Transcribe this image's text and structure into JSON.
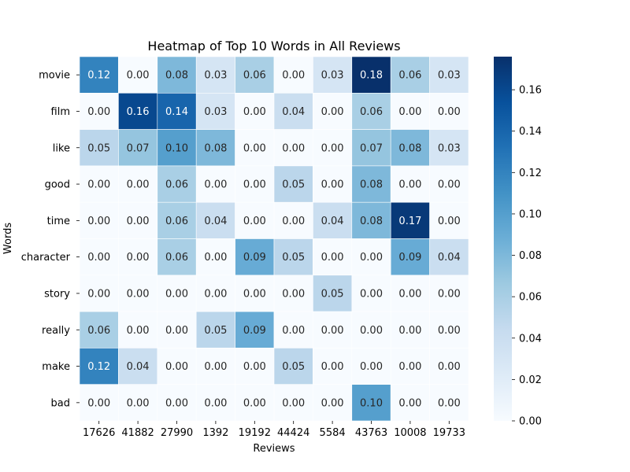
{
  "chart_data": {
    "type": "heatmap",
    "title": "Heatmap of Top 10 Words in All Reviews",
    "xlabel": "Reviews",
    "ylabel": "Words",
    "x": [
      "17626",
      "41882",
      "27990",
      "1392",
      "19192",
      "44424",
      "5584",
      "43763",
      "10008",
      "19733"
    ],
    "y": [
      "movie",
      "film",
      "like",
      "good",
      "time",
      "character",
      "story",
      "really",
      "make",
      "bad"
    ],
    "values": [
      [
        0.12,
        0.0,
        0.08,
        0.03,
        0.06,
        0.0,
        0.03,
        0.18,
        0.06,
        0.03
      ],
      [
        0.0,
        0.16,
        0.14,
        0.03,
        0.0,
        0.04,
        0.0,
        0.06,
        0.0,
        0.0
      ],
      [
        0.05,
        0.07,
        0.1,
        0.08,
        0.0,
        0.0,
        0.0,
        0.07,
        0.08,
        0.03
      ],
      [
        0.0,
        0.0,
        0.06,
        0.0,
        0.0,
        0.05,
        0.0,
        0.08,
        0.0,
        0.0
      ],
      [
        0.0,
        0.0,
        0.06,
        0.04,
        0.0,
        0.0,
        0.04,
        0.08,
        0.17,
        0.0
      ],
      [
        0.0,
        0.0,
        0.06,
        0.0,
        0.09,
        0.05,
        0.0,
        0.0,
        0.09,
        0.04
      ],
      [
        0.0,
        0.0,
        0.0,
        0.0,
        0.0,
        0.0,
        0.05,
        0.0,
        0.0,
        0.0
      ],
      [
        0.06,
        0.0,
        0.0,
        0.05,
        0.09,
        0.0,
        0.0,
        0.0,
        0.0,
        0.0
      ],
      [
        0.12,
        0.04,
        0.0,
        0.0,
        0.0,
        0.05,
        0.0,
        0.0,
        0.0,
        0.0
      ],
      [
        0.0,
        0.0,
        0.0,
        0.0,
        0.0,
        0.0,
        0.0,
        0.1,
        0.0,
        0.0
      ]
    ],
    "value_format": "0.00",
    "colormap": "Blues",
    "colormap_stops": [
      "#f7fbff",
      "#deebf7",
      "#c6dbef",
      "#9ecae1",
      "#6baed6",
      "#4292c6",
      "#2171b5",
      "#08519c",
      "#08306b"
    ],
    "colorbar": {
      "range": [
        0,
        0.176
      ],
      "ticks": [
        0.0,
        0.02,
        0.04,
        0.06,
        0.08,
        0.1,
        0.12,
        0.14,
        0.16
      ],
      "tick_labels": [
        "0.00",
        "0.02",
        "0.04",
        "0.06",
        "0.08",
        "0.10",
        "0.12",
        "0.14",
        "0.16"
      ]
    },
    "grid": true,
    "cell_border_color": "#ffffff"
  }
}
